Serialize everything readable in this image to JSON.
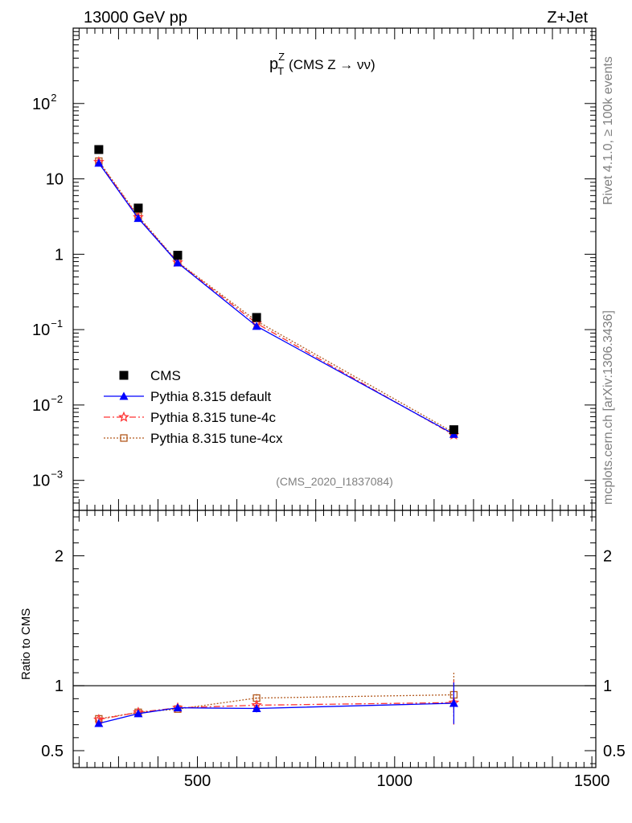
{
  "header": {
    "left": "13000 GeV pp",
    "right": "Z+Jet"
  },
  "side_labels": {
    "rivet": "Rivet 4.1.0, ≥ 100k events",
    "mcplots": "mcplots.cern.ch [arXiv:1306.3436]"
  },
  "chart_data": [
    {
      "type": "scatter",
      "panel": "main",
      "title": {
        "base": "p",
        "sup": "Z",
        "sub": "T",
        "rest": "(CMS Z → νν)"
      },
      "analysis_id": "(CMS_2020_I1837084)",
      "yscale": "log",
      "ylim": [
        0.0004,
        1000
      ],
      "xlim": [
        185,
        1510
      ],
      "y_tick_labels": [
        {
          "value": 100,
          "base": "10",
          "exp": "2"
        },
        {
          "value": 10,
          "base": "10",
          "exp": ""
        },
        {
          "value": 1,
          "base": "1",
          "exp": ""
        },
        {
          "value": 0.1,
          "base": "10",
          "exp": "−1"
        },
        {
          "value": 0.01,
          "base": "10",
          "exp": "−2"
        },
        {
          "value": 0.001,
          "base": "10",
          "exp": "−3"
        }
      ],
      "x": [
        250,
        350,
        450,
        650,
        1150
      ],
      "series": [
        {
          "name": "CMS",
          "color": "#000000",
          "marker": "square",
          "values": [
            24.5,
            4.1,
            0.97,
            0.145,
            0.0047
          ]
        },
        {
          "name": "Pythia 8.315 default",
          "color": "#0000ff",
          "marker": "triangle",
          "line": "solid",
          "values": [
            16.2,
            3.0,
            0.77,
            0.111,
            0.0041
          ]
        },
        {
          "name": "Pythia 8.315 tune-4c",
          "color": "#ff3333",
          "marker": "star",
          "line": "dashdot",
          "values": [
            16.8,
            3.1,
            0.78,
            0.121,
            0.004
          ]
        },
        {
          "name": "Pythia 8.315 tune-4cx",
          "color": "#b35a1f",
          "marker": "open-square",
          "line": "dotted",
          "values": [
            17.2,
            3.2,
            0.79,
            0.13,
            0.0043
          ]
        }
      ]
    },
    {
      "type": "line",
      "panel": "ratio",
      "ylabel": "Ratio to CMS",
      "ylim": [
        0.37,
        2.35
      ],
      "xlim": [
        185,
        1510
      ],
      "y_tick_labels": [
        "2",
        "1",
        "0.5"
      ],
      "y_tick_values": [
        2,
        1,
        0.5
      ],
      "x_tick_labels": [
        "500",
        "1000",
        "1500"
      ],
      "x_tick_values": [
        500,
        1000,
        1500
      ],
      "x": [
        250,
        350,
        450,
        650,
        1150
      ],
      "series": [
        {
          "name": "Pythia 8.315 default",
          "color": "#0000ff",
          "marker": "triangle",
          "line": "solid",
          "values": [
            0.71,
            0.785,
            0.83,
            0.825,
            0.865
          ],
          "err": [
            0.01,
            0.01,
            0.02,
            0.03,
            0.16
          ]
        },
        {
          "name": "Pythia 8.315 tune-4c",
          "color": "#ff3333",
          "marker": "star",
          "line": "dashdot",
          "values": [
            0.74,
            0.795,
            0.83,
            0.85,
            0.87
          ],
          "err": [
            0.01,
            0.01,
            0.02,
            0.02,
            0.17
          ]
        },
        {
          "name": "Pythia 8.315 tune-4cx",
          "color": "#b35a1f",
          "marker": "open-square",
          "line": "dotted",
          "values": [
            0.745,
            0.795,
            0.82,
            0.905,
            0.93
          ],
          "err": [
            0.01,
            0.01,
            0.02,
            0.03,
            0.17
          ]
        }
      ]
    }
  ]
}
